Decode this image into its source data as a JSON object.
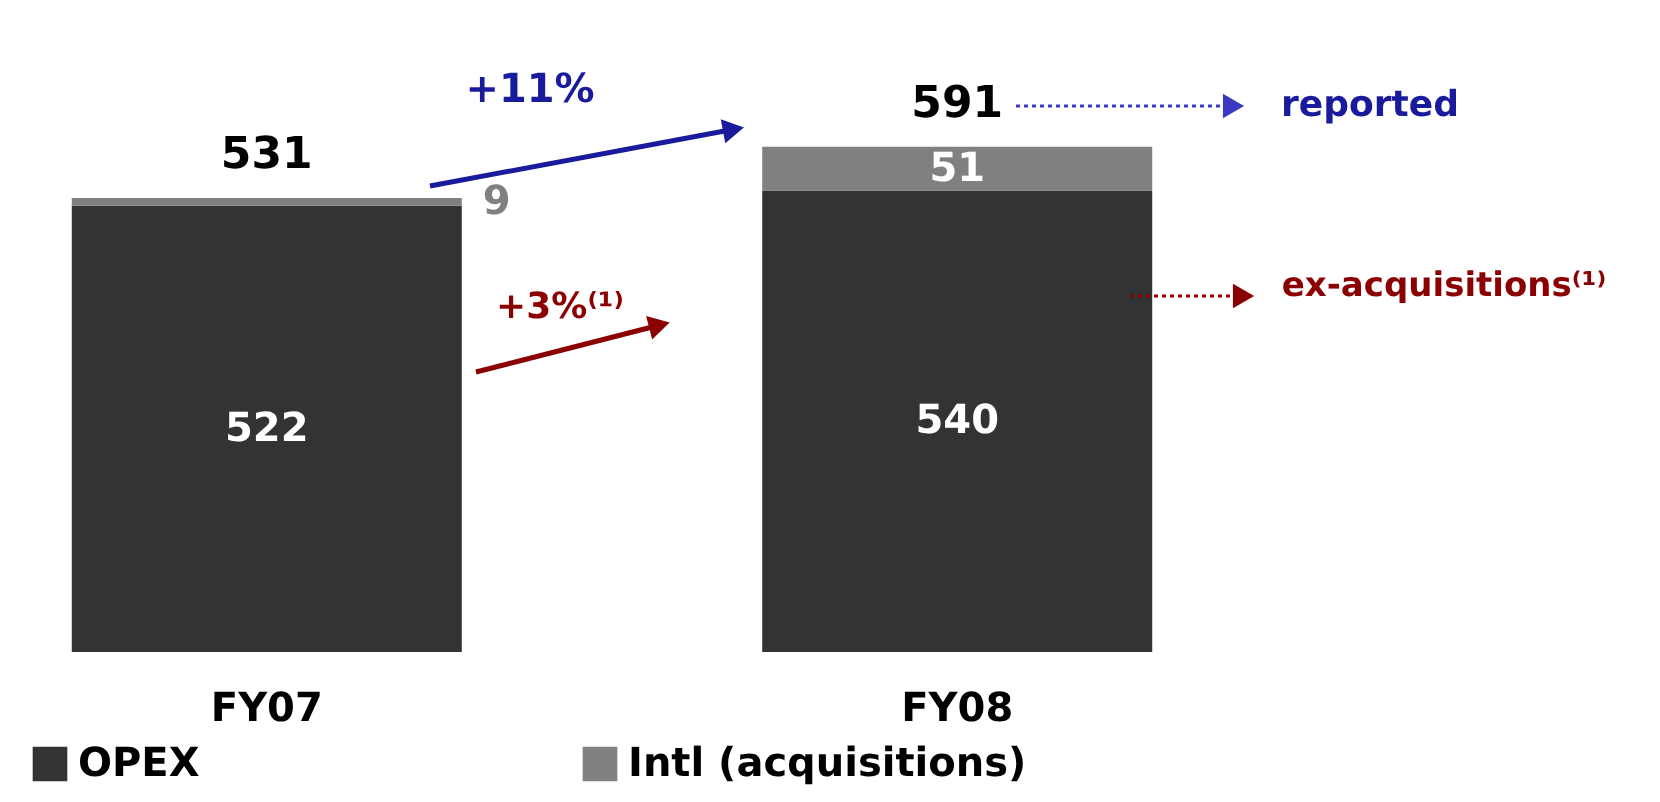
{
  "chart_data": {
    "type": "bar",
    "stacked": true,
    "data_labels": true,
    "legend": "bottom",
    "categories": [
      "FY07",
      "FY08"
    ],
    "series": [
      {
        "name": "OPEX",
        "color": "#333333",
        "values": [
          522,
          540
        ]
      },
      {
        "name": "Intl (acquisitions)",
        "color": "#808080",
        "values": [
          9,
          51
        ]
      }
    ],
    "totals": [
      "531",
      "591"
    ],
    "annotations": [
      "+11%",
      "+3%⁽¹⁾",
      "reported",
      "ex-acquisitions⁽¹⁾"
    ]
  }
}
